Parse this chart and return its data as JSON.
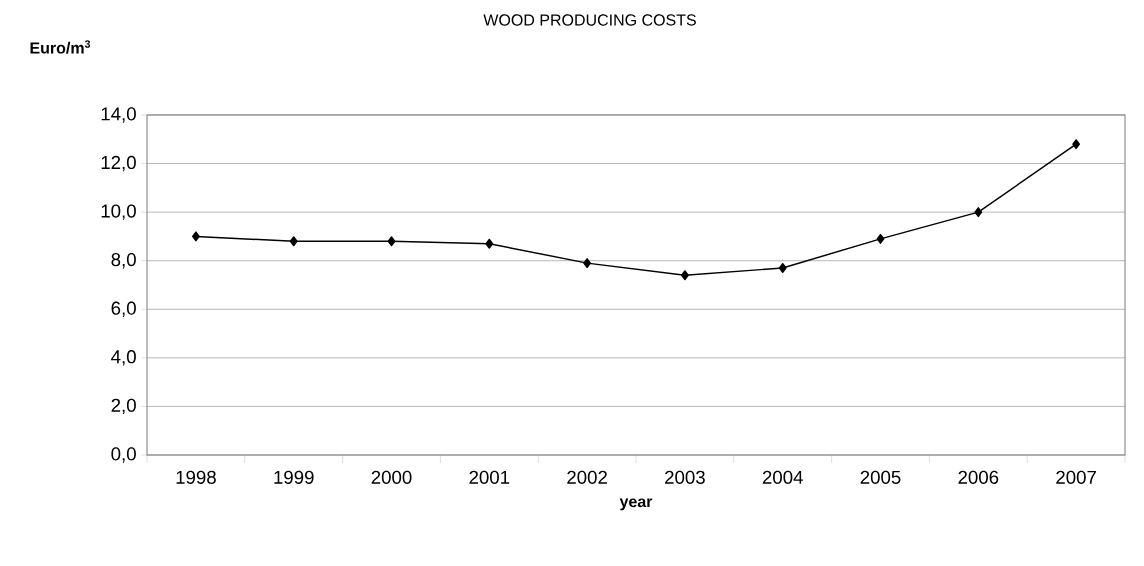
{
  "chart_data": {
    "type": "line",
    "title": "WOOD PRODUCING COSTS",
    "xlabel": "year",
    "ylabel": "Euro/m$^{3}$",
    "categories": [
      "1998",
      "1999",
      "2000",
      "2001",
      "2002",
      "2003",
      "2004",
      "2005",
      "2006",
      "2007"
    ],
    "series": [
      {
        "color": "#000000",
        "values": [
          9.0,
          8.8,
          8.8,
          8.7,
          7.9,
          7.4,
          7.7,
          8.9,
          10.0,
          12.8
        ]
      }
    ],
    "ylim": [
      0,
      14
    ],
    "yticks": [
      {
        "value": 0,
        "label": "0,0"
      },
      {
        "value": 2,
        "label": "2,0"
      },
      {
        "value": 4,
        "label": "4,0"
      },
      {
        "value": 6,
        "label": "6,0"
      },
      {
        "value": 8,
        "label": "8,0"
      },
      {
        "value": 10,
        "label": "10,0"
      },
      {
        "value": 12,
        "label": "12,0"
      },
      {
        "value": 14,
        "label": "14,0"
      }
    ],
    "grid": "y",
    "marker": "diamond",
    "line_style": "solid"
  }
}
